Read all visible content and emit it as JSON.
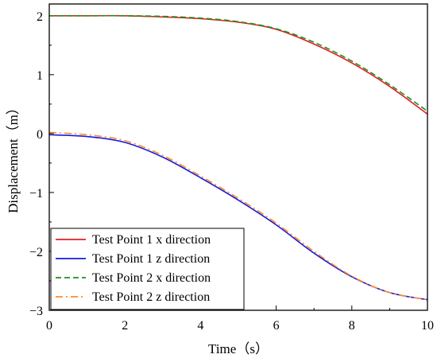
{
  "chart_data": {
    "type": "line",
    "xlabel": "Time（s）",
    "ylabel": "Displacement（m）",
    "xlim": [
      0,
      10
    ],
    "ylim": [
      -3,
      2.2
    ],
    "xticks": [
      0,
      2,
      4,
      6,
      8,
      10
    ],
    "yticks": [
      -3,
      -2,
      -1,
      0,
      1,
      2
    ],
    "grid": false,
    "legend_position": "bottom-left",
    "series": [
      {
        "name": "Test Point 1 x direction",
        "color": "#e02020",
        "dash": "solid",
        "x": [
          0,
          1,
          2,
          3,
          4,
          5,
          6,
          7,
          8,
          9,
          10
        ],
        "y": [
          2.0,
          2.0,
          2.0,
          1.98,
          1.95,
          1.89,
          1.77,
          1.52,
          1.2,
          0.8,
          0.33
        ]
      },
      {
        "name": "Test Point 1 z direction",
        "color": "#1a1adb",
        "dash": "solid",
        "x": [
          0,
          1,
          2,
          3,
          4,
          5,
          6,
          7,
          8,
          9,
          10
        ],
        "y": [
          -0.02,
          -0.05,
          -0.15,
          -0.4,
          -0.75,
          -1.13,
          -1.55,
          -2.03,
          -2.43,
          -2.7,
          -2.82
        ]
      },
      {
        "name": "Test Point 2 x direction",
        "color": "#1f8f1f",
        "dash": "dash",
        "x": [
          0,
          1,
          2,
          3,
          4,
          5,
          6,
          7,
          8,
          9,
          10
        ],
        "y": [
          2.0,
          2.0,
          2.0,
          1.99,
          1.96,
          1.9,
          1.78,
          1.55,
          1.23,
          0.83,
          0.38
        ]
      },
      {
        "name": "Test Point 2 z direction",
        "color": "#ff8c2a",
        "dash": "dashdot",
        "x": [
          0,
          1,
          2,
          3,
          4,
          5,
          6,
          7,
          8,
          9,
          10
        ],
        "y": [
          0.02,
          -0.02,
          -0.12,
          -0.37,
          -0.72,
          -1.1,
          -1.52,
          -2.0,
          -2.42,
          -2.7,
          -2.82
        ]
      }
    ]
  }
}
